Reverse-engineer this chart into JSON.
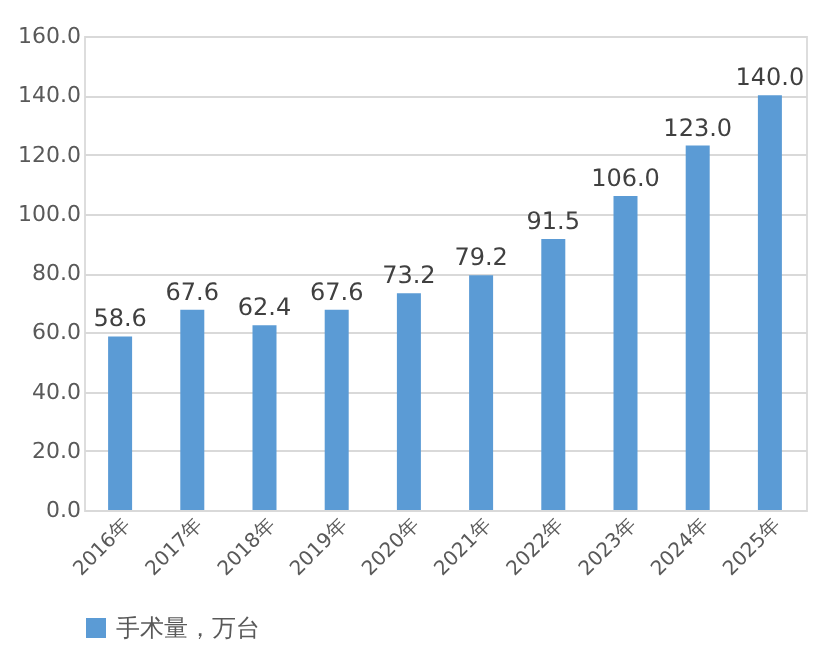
{
  "chart_data": {
    "type": "bar",
    "categories": [
      "2016年",
      "2017年",
      "2018年",
      "2019年",
      "2020年",
      "2021年",
      "2022年",
      "2023年",
      "2024年",
      "2025年"
    ],
    "series": [
      {
        "name": "手术量，万台",
        "color": "#5b9bd5",
        "values": [
          58.6,
          67.6,
          62.4,
          67.6,
          73.2,
          79.2,
          91.5,
          106.0,
          123.0,
          140.0
        ]
      }
    ],
    "value_labels": [
      "58.6",
      "67.6",
      "62.4",
      "67.6",
      "73.2",
      "79.2",
      "91.5",
      "106.0",
      "123.0",
      "140.0"
    ],
    "ylim": [
      0,
      160
    ],
    "yticks": [
      {
        "value": 0,
        "label": "0.0"
      },
      {
        "value": 20,
        "label": "20.0"
      },
      {
        "value": 40,
        "label": "40.0"
      },
      {
        "value": 60,
        "label": "60.0"
      },
      {
        "value": 80,
        "label": "80.0"
      },
      {
        "value": 100,
        "label": "100.0"
      },
      {
        "value": 120,
        "label": "120.0"
      },
      {
        "value": 140,
        "label": "140.0"
      },
      {
        "value": 160,
        "label": "160.0"
      }
    ],
    "grid": "y",
    "legend": "bottom"
  }
}
